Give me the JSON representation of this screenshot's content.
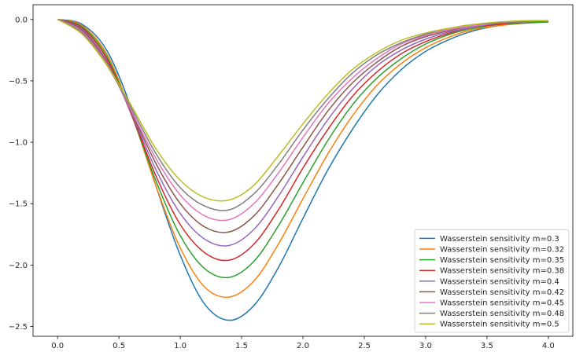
{
  "chart_data": {
    "type": "line",
    "title": "",
    "xlabel": "",
    "ylabel": "",
    "xlim": [
      -0.2,
      4.2
    ],
    "ylim": [
      -2.58,
      0.12
    ],
    "xticks": [
      0.0,
      0.5,
      1.0,
      1.5,
      2.0,
      2.5,
      3.0,
      3.5,
      4.0
    ],
    "xtick_labels": [
      "0.0",
      "0.5",
      "1.0",
      "1.5",
      "2.0",
      "2.5",
      "3.0",
      "3.5",
      "4.0"
    ],
    "yticks": [
      0.0,
      -0.5,
      -1.0,
      -1.5,
      -2.0,
      -2.5
    ],
    "ytick_labels": [
      "0.0",
      "−0.5",
      "−1.0",
      "−1.5",
      "−2.0",
      "−2.5"
    ],
    "grid": false,
    "legend_position": "lower-right",
    "x": [
      0.0,
      0.2,
      0.4,
      0.6,
      0.8,
      1.0,
      1.2,
      1.4,
      1.6,
      1.8,
      2.0,
      2.2,
      2.4,
      2.6,
      2.8,
      3.0,
      3.2,
      3.4,
      3.6,
      3.8,
      4.0
    ],
    "series": [
      {
        "name": "Wasserstein sensitivity m=0.3",
        "color": "#1f77b4",
        "values": [
          0.0,
          -0.04,
          -0.25,
          -0.72,
          -1.35,
          -1.92,
          -2.32,
          -2.45,
          -2.33,
          -2.02,
          -1.62,
          -1.23,
          -0.9,
          -0.62,
          -0.41,
          -0.26,
          -0.16,
          -0.09,
          -0.05,
          -0.03,
          -0.02
        ]
      },
      {
        "name": "Wasserstein sensitivity m=0.32",
        "color": "#ff7f0e",
        "values": [
          0.0,
          -0.05,
          -0.28,
          -0.76,
          -1.35,
          -1.86,
          -2.18,
          -2.26,
          -2.13,
          -1.83,
          -1.46,
          -1.1,
          -0.79,
          -0.54,
          -0.36,
          -0.23,
          -0.14,
          -0.08,
          -0.05,
          -0.03,
          -0.02
        ]
      },
      {
        "name": "Wasserstein sensitivity m=0.35",
        "color": "#2ca02c",
        "values": [
          0.0,
          -0.06,
          -0.3,
          -0.77,
          -1.31,
          -1.76,
          -2.03,
          -2.1,
          -1.97,
          -1.68,
          -1.33,
          -0.99,
          -0.7,
          -0.48,
          -0.32,
          -0.2,
          -0.12,
          -0.07,
          -0.04,
          -0.03,
          -0.02
        ]
      },
      {
        "name": "Wasserstein sensitivity m=0.38",
        "color": "#d62728",
        "values": [
          0.0,
          -0.07,
          -0.32,
          -0.77,
          -1.27,
          -1.67,
          -1.9,
          -1.96,
          -1.83,
          -1.55,
          -1.21,
          -0.9,
          -0.63,
          -0.43,
          -0.28,
          -0.18,
          -0.11,
          -0.06,
          -0.04,
          -0.02,
          -0.01
        ]
      },
      {
        "name": "Wasserstein sensitivity m=0.4",
        "color": "#9467bd",
        "values": [
          0.0,
          -0.08,
          -0.34,
          -0.76,
          -1.22,
          -1.58,
          -1.79,
          -1.84,
          -1.71,
          -1.44,
          -1.12,
          -0.82,
          -0.57,
          -0.38,
          -0.25,
          -0.16,
          -0.1,
          -0.06,
          -0.03,
          -0.02,
          -0.01
        ]
      },
      {
        "name": "Wasserstein sensitivity m=0.42",
        "color": "#8c564b",
        "values": [
          0.0,
          -0.09,
          -0.35,
          -0.75,
          -1.17,
          -1.5,
          -1.69,
          -1.73,
          -1.6,
          -1.34,
          -1.04,
          -0.75,
          -0.52,
          -0.35,
          -0.22,
          -0.14,
          -0.09,
          -0.05,
          -0.03,
          -0.02,
          -0.01
        ]
      },
      {
        "name": "Wasserstein sensitivity m=0.45",
        "color": "#e377c2",
        "values": [
          0.0,
          -0.1,
          -0.36,
          -0.74,
          -1.13,
          -1.43,
          -1.6,
          -1.63,
          -1.5,
          -1.25,
          -0.96,
          -0.69,
          -0.48,
          -0.32,
          -0.2,
          -0.13,
          -0.08,
          -0.05,
          -0.03,
          -0.02,
          -0.01
        ]
      },
      {
        "name": "Wasserstein sensitivity m=0.48",
        "color": "#7f7f7f",
        "values": [
          0.0,
          -0.11,
          -0.37,
          -0.72,
          -1.09,
          -1.37,
          -1.52,
          -1.55,
          -1.42,
          -1.18,
          -0.9,
          -0.65,
          -0.44,
          -0.29,
          -0.19,
          -0.12,
          -0.07,
          -0.04,
          -0.03,
          -0.02,
          -0.01
        ]
      },
      {
        "name": "Wasserstein sensitivity m=0.5",
        "color": "#bcbd22",
        "values": [
          0.0,
          -0.12,
          -0.37,
          -0.7,
          -1.05,
          -1.31,
          -1.45,
          -1.47,
          -1.35,
          -1.11,
          -0.85,
          -0.61,
          -0.41,
          -0.27,
          -0.17,
          -0.11,
          -0.07,
          -0.04,
          -0.02,
          -0.01,
          -0.01
        ]
      }
    ]
  }
}
